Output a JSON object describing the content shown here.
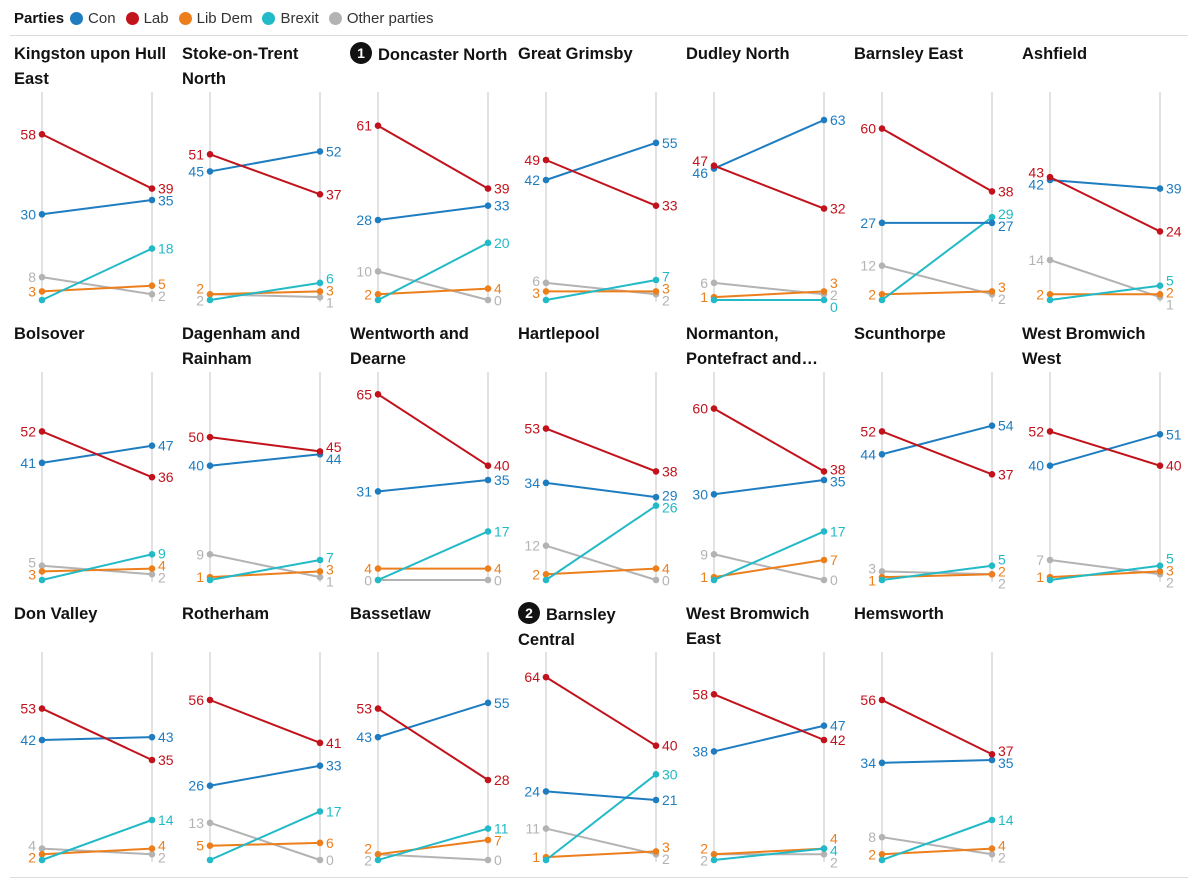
{
  "legend": {
    "title": "Parties",
    "items": [
      {
        "key": "con",
        "label": "Con",
        "color": "#1e7dc1"
      },
      {
        "key": "lab",
        "label": "Lab",
        "color": "#c2121b"
      },
      {
        "key": "ld",
        "label": "Lib Dem",
        "color": "#ec7f1c"
      },
      {
        "key": "brx",
        "label": "Brexit",
        "color": "#21bac6"
      },
      {
        "key": "oth",
        "label": "Other parties",
        "color": "#b3b3b3"
      }
    ]
  },
  "chart_data": {
    "type": "line",
    "ylim": [
      0,
      70
    ],
    "series_order": [
      "con",
      "lab",
      "ld",
      "brx",
      "oth"
    ],
    "panels": [
      {
        "title": "Kingston upon Hull East",
        "marker": "",
        "start": {
          "con": 30,
          "lab": 58,
          "ld": 3,
          "brx": 0,
          "oth": 8
        },
        "end": {
          "con": 35,
          "lab": 39,
          "ld": 5,
          "brx": 18,
          "oth": 2
        }
      },
      {
        "title": "Stoke-on-Trent North",
        "marker": "",
        "start": {
          "con": 45,
          "lab": 51,
          "ld": 2,
          "brx": 0,
          "oth": 2
        },
        "end": {
          "con": 52,
          "lab": 37,
          "ld": 3,
          "brx": 6,
          "oth": 1
        }
      },
      {
        "title": "Doncaster North",
        "marker": "1",
        "start": {
          "con": 28,
          "lab": 61,
          "ld": 2,
          "brx": 0,
          "oth": 10
        },
        "end": {
          "con": 33,
          "lab": 39,
          "ld": 4,
          "brx": 20,
          "oth": 0
        }
      },
      {
        "title": "Great Grimsby",
        "marker": "",
        "start": {
          "con": 42,
          "lab": 49,
          "ld": 3,
          "brx": 0,
          "oth": 6
        },
        "end": {
          "con": 55,
          "lab": 33,
          "ld": 3,
          "brx": 7,
          "oth": 2
        }
      },
      {
        "title": "Dudley North",
        "marker": "",
        "start": {
          "con": 46,
          "lab": 47,
          "ld": 1,
          "brx": 0,
          "oth": 6
        },
        "end": {
          "con": 63,
          "lab": 32,
          "ld": 3,
          "brx": 0,
          "oth": 2
        }
      },
      {
        "title": "Barnsley East",
        "marker": "",
        "start": {
          "con": 27,
          "lab": 60,
          "ld": 2,
          "brx": 0,
          "oth": 12
        },
        "end": {
          "con": 27,
          "lab": 38,
          "ld": 3,
          "brx": 29,
          "oth": 2
        }
      },
      {
        "title": "Ashfield",
        "marker": "",
        "start": {
          "con": 42,
          "lab": 43,
          "ld": 2,
          "brx": 0,
          "oth": 14
        },
        "end": {
          "con": 39,
          "lab": 24,
          "ld": 2,
          "brx": 5,
          "oth": 1
        }
      },
      {
        "title": "Bolsover",
        "marker": "",
        "start": {
          "con": 41,
          "lab": 52,
          "ld": 3,
          "brx": 0,
          "oth": 5
        },
        "end": {
          "con": 47,
          "lab": 36,
          "ld": 4,
          "brx": 9,
          "oth": 2
        }
      },
      {
        "title": "Dagenham and Rainham",
        "marker": "",
        "start": {
          "con": 40,
          "lab": 50,
          "ld": 1,
          "brx": 0,
          "oth": 9
        },
        "end": {
          "con": 44,
          "lab": 45,
          "ld": 3,
          "brx": 7,
          "oth": 1
        }
      },
      {
        "title": "Wentworth and Dearne",
        "marker": "",
        "start": {
          "con": 31,
          "lab": 65,
          "ld": 4,
          "brx": 0,
          "oth": 0
        },
        "end": {
          "con": 35,
          "lab": 40,
          "ld": 4,
          "brx": 17,
          "oth": 0
        }
      },
      {
        "title": "Hartlepool",
        "marker": "",
        "start": {
          "con": 34,
          "lab": 53,
          "ld": 2,
          "brx": 0,
          "oth": 12
        },
        "end": {
          "con": 29,
          "lab": 38,
          "ld": 4,
          "brx": 26,
          "oth": 0
        }
      },
      {
        "title": "Normanton, Pontefract and…",
        "marker": "",
        "start": {
          "con": 30,
          "lab": 60,
          "ld": 1,
          "brx": 0,
          "oth": 9
        },
        "end": {
          "con": 35,
          "lab": 38,
          "ld": 7,
          "brx": 17,
          "oth": 0
        }
      },
      {
        "title": "Scunthorpe",
        "marker": "",
        "start": {
          "con": 44,
          "lab": 52,
          "ld": 1,
          "brx": 0,
          "oth": 3
        },
        "end": {
          "con": 54,
          "lab": 37,
          "ld": 2,
          "brx": 5,
          "oth": 2
        }
      },
      {
        "title": "West Bromwich West",
        "marker": "",
        "start": {
          "con": 40,
          "lab": 52,
          "ld": 1,
          "brx": 0,
          "oth": 7
        },
        "end": {
          "con": 51,
          "lab": 40,
          "ld": 3,
          "brx": 5,
          "oth": 2
        }
      },
      {
        "title": "Don Valley",
        "marker": "",
        "start": {
          "con": 42,
          "lab": 53,
          "ld": 2,
          "brx": 0,
          "oth": 4
        },
        "end": {
          "con": 43,
          "lab": 35,
          "ld": 4,
          "brx": 14,
          "oth": 2
        }
      },
      {
        "title": "Rotherham",
        "marker": "",
        "start": {
          "con": 26,
          "lab": 56,
          "ld": 5,
          "brx": 0,
          "oth": 13
        },
        "end": {
          "con": 33,
          "lab": 41,
          "ld": 6,
          "brx": 17,
          "oth": 0
        }
      },
      {
        "title": "Bassetlaw",
        "marker": "",
        "start": {
          "con": 43,
          "lab": 53,
          "ld": 2,
          "brx": 0,
          "oth": 2
        },
        "end": {
          "con": 55,
          "lab": 28,
          "ld": 7,
          "brx": 11,
          "oth": 0
        }
      },
      {
        "title": "Barnsley Central",
        "marker": "2",
        "start": {
          "con": 24,
          "lab": 64,
          "ld": 1,
          "brx": 0,
          "oth": 11
        },
        "end": {
          "con": 21,
          "lab": 40,
          "ld": 3,
          "brx": 30,
          "oth": 2
        }
      },
      {
        "title": "West Bromwich East",
        "marker": "",
        "start": {
          "con": 38,
          "lab": 58,
          "ld": 2,
          "brx": 0,
          "oth": 2
        },
        "end": {
          "con": 47,
          "lab": 42,
          "ld": 4,
          "brx": 4,
          "oth": 2
        }
      },
      {
        "title": "Hemsworth",
        "marker": "",
        "start": {
          "con": 34,
          "lab": 56,
          "ld": 2,
          "brx": 0,
          "oth": 8
        },
        "end": {
          "con": 35,
          "lab": 37,
          "ld": 4,
          "brx": 14,
          "oth": 2
        }
      }
    ]
  }
}
